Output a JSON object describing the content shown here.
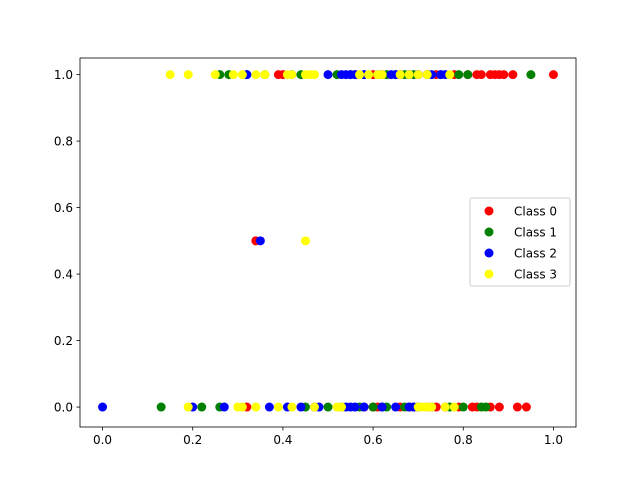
{
  "chart_data": {
    "type": "scatter",
    "title": "",
    "xlabel": "",
    "ylabel": "",
    "xlim": [
      -0.05,
      1.05
    ],
    "ylim": [
      -0.06,
      1.05
    ],
    "xticks": [
      0.0,
      0.2,
      0.4,
      0.6,
      0.8,
      1.0
    ],
    "xtick_labels": [
      "0.0",
      "0.2",
      "0.4",
      "0.6",
      "0.8",
      "1.0"
    ],
    "yticks": [
      0.0,
      0.2,
      0.4,
      0.6,
      0.8,
      1.0
    ],
    "ytick_labels": [
      "0.0",
      "0.2",
      "0.4",
      "0.6",
      "0.8",
      "1.0"
    ],
    "grid": false,
    "legend_position": "center-right",
    "series": [
      {
        "name": "Class 0",
        "color": "#ff0000",
        "points": [
          [
            0.39,
            1.0
          ],
          [
            0.4,
            1.0
          ],
          [
            0.56,
            1.0
          ],
          [
            0.6,
            1.0
          ],
          [
            0.62,
            1.0
          ],
          [
            0.66,
            1.0
          ],
          [
            0.7,
            1.0
          ],
          [
            0.72,
            1.0
          ],
          [
            0.74,
            1.0
          ],
          [
            0.78,
            1.0
          ],
          [
            0.81,
            1.0
          ],
          [
            0.83,
            1.0
          ],
          [
            0.84,
            1.0
          ],
          [
            0.86,
            1.0
          ],
          [
            0.87,
            1.0
          ],
          [
            0.88,
            1.0
          ],
          [
            0.89,
            1.0
          ],
          [
            0.91,
            1.0
          ],
          [
            1.0,
            1.0
          ],
          [
            0.34,
            0.5
          ],
          [
            0.32,
            0.0
          ],
          [
            0.58,
            0.0
          ],
          [
            0.6,
            0.0
          ],
          [
            0.61,
            0.0
          ],
          [
            0.66,
            0.0
          ],
          [
            0.68,
            0.0
          ],
          [
            0.69,
            0.0
          ],
          [
            0.72,
            0.0
          ],
          [
            0.74,
            0.0
          ],
          [
            0.76,
            0.0
          ],
          [
            0.79,
            0.0
          ],
          [
            0.82,
            0.0
          ],
          [
            0.83,
            0.0
          ],
          [
            0.86,
            0.0
          ],
          [
            0.88,
            0.0
          ],
          [
            0.92,
            0.0
          ],
          [
            0.94,
            0.0
          ]
        ]
      },
      {
        "name": "Class 1",
        "color": "#008000",
        "points": [
          [
            0.26,
            1.0
          ],
          [
            0.28,
            1.0
          ],
          [
            0.32,
            1.0
          ],
          [
            0.36,
            1.0
          ],
          [
            0.44,
            1.0
          ],
          [
            0.52,
            1.0
          ],
          [
            0.55,
            1.0
          ],
          [
            0.58,
            1.0
          ],
          [
            0.63,
            1.0
          ],
          [
            0.65,
            1.0
          ],
          [
            0.67,
            1.0
          ],
          [
            0.69,
            1.0
          ],
          [
            0.72,
            1.0
          ],
          [
            0.75,
            1.0
          ],
          [
            0.79,
            1.0
          ],
          [
            0.81,
            1.0
          ],
          [
            0.95,
            1.0
          ],
          [
            0.13,
            0.0
          ],
          [
            0.22,
            0.0
          ],
          [
            0.26,
            0.0
          ],
          [
            0.45,
            0.0
          ],
          [
            0.5,
            0.0
          ],
          [
            0.53,
            0.0
          ],
          [
            0.57,
            0.0
          ],
          [
            0.6,
            0.0
          ],
          [
            0.62,
            0.0
          ],
          [
            0.63,
            0.0
          ],
          [
            0.67,
            0.0
          ],
          [
            0.7,
            0.0
          ],
          [
            0.77,
            0.0
          ],
          [
            0.8,
            0.0
          ],
          [
            0.84,
            0.0
          ],
          [
            0.85,
            0.0
          ]
        ]
      },
      {
        "name": "Class 2",
        "color": "#0000ff",
        "points": [
          [
            0.32,
            1.0
          ],
          [
            0.42,
            1.0
          ],
          [
            0.5,
            1.0
          ],
          [
            0.53,
            1.0
          ],
          [
            0.54,
            1.0
          ],
          [
            0.55,
            1.0
          ],
          [
            0.56,
            1.0
          ],
          [
            0.58,
            1.0
          ],
          [
            0.61,
            1.0
          ],
          [
            0.64,
            1.0
          ],
          [
            0.65,
            1.0
          ],
          [
            0.68,
            1.0
          ],
          [
            0.7,
            1.0
          ],
          [
            0.73,
            1.0
          ],
          [
            0.75,
            1.0
          ],
          [
            0.76,
            1.0
          ],
          [
            0.35,
            0.5
          ],
          [
            0.0,
            0.0
          ],
          [
            0.2,
            0.0
          ],
          [
            0.27,
            0.0
          ],
          [
            0.37,
            0.0
          ],
          [
            0.41,
            0.0
          ],
          [
            0.44,
            0.0
          ],
          [
            0.47,
            0.0
          ],
          [
            0.48,
            0.0
          ],
          [
            0.54,
            0.0
          ],
          [
            0.55,
            0.0
          ],
          [
            0.56,
            0.0
          ],
          [
            0.58,
            0.0
          ],
          [
            0.62,
            0.0
          ],
          [
            0.65,
            0.0
          ],
          [
            0.68,
            0.0
          ],
          [
            0.69,
            0.0
          ],
          [
            0.7,
            0.0
          ],
          [
            0.73,
            0.0
          ]
        ]
      },
      {
        "name": "Class 3",
        "color": "#ffff00",
        "points": [
          [
            0.15,
            1.0
          ],
          [
            0.19,
            1.0
          ],
          [
            0.25,
            1.0
          ],
          [
            0.29,
            1.0
          ],
          [
            0.31,
            1.0
          ],
          [
            0.34,
            1.0
          ],
          [
            0.36,
            1.0
          ],
          [
            0.41,
            1.0
          ],
          [
            0.42,
            1.0
          ],
          [
            0.45,
            1.0
          ],
          [
            0.46,
            1.0
          ],
          [
            0.47,
            1.0
          ],
          [
            0.57,
            1.0
          ],
          [
            0.59,
            1.0
          ],
          [
            0.61,
            1.0
          ],
          [
            0.62,
            1.0
          ],
          [
            0.66,
            1.0
          ],
          [
            0.68,
            1.0
          ],
          [
            0.7,
            1.0
          ],
          [
            0.72,
            1.0
          ],
          [
            0.77,
            1.0
          ],
          [
            0.45,
            0.5
          ],
          [
            0.19,
            0.0
          ],
          [
            0.3,
            0.0
          ],
          [
            0.31,
            0.0
          ],
          [
            0.34,
            0.0
          ],
          [
            0.39,
            0.0
          ],
          [
            0.42,
            0.0
          ],
          [
            0.47,
            0.0
          ],
          [
            0.52,
            0.0
          ],
          [
            0.53,
            0.0
          ],
          [
            0.7,
            0.0
          ],
          [
            0.71,
            0.0
          ],
          [
            0.72,
            0.0
          ],
          [
            0.73,
            0.0
          ],
          [
            0.76,
            0.0
          ],
          [
            0.78,
            0.0
          ]
        ]
      }
    ]
  }
}
